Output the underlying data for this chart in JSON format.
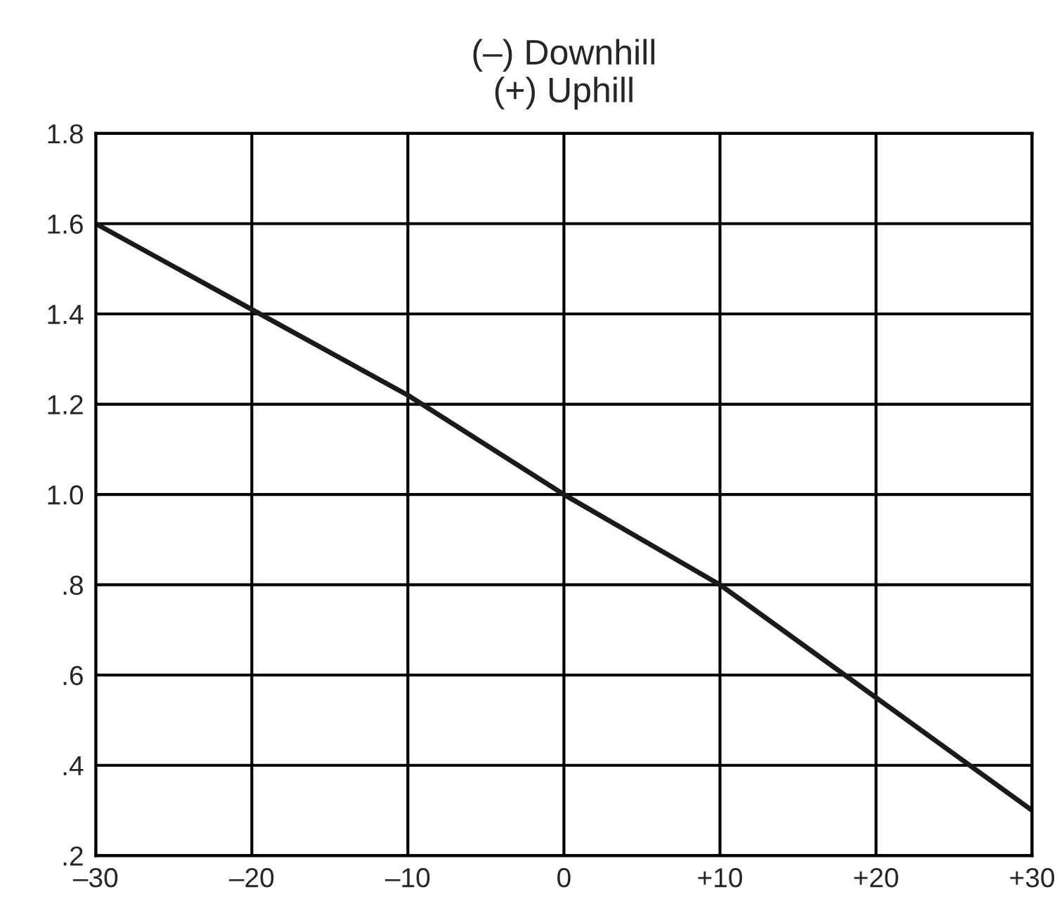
{
  "chart_data": {
    "type": "line",
    "title": "(–) Downhill\n(+) Uphill",
    "x": [
      -30,
      -20,
      -10,
      0,
      10,
      20,
      30
    ],
    "series": [
      {
        "color": "#1a1a1a",
        "values": [
          1.6,
          1.41,
          1.22,
          1.0,
          0.8,
          0.55,
          0.3
        ]
      }
    ],
    "xlim": [
      -30,
      30
    ],
    "xticks": [
      {
        "value": -30,
        "label": "–30"
      },
      {
        "value": -20,
        "label": "–20"
      },
      {
        "value": -10,
        "label": "–10"
      },
      0,
      {
        "value": 10,
        "label": "+10"
      },
      {
        "value": 20,
        "label": "+20"
      },
      {
        "value": 30,
        "label": "+30"
      }
    ],
    "ylim": [
      0.2,
      1.8
    ],
    "yticks": [
      {
        "value": 0.2,
        "label": ".2"
      },
      {
        "value": 0.4,
        "label": ".4"
      },
      {
        "value": 0.6,
        "label": ".6"
      },
      {
        "value": 0.8,
        "label": ".8"
      },
      {
        "value": 1.0,
        "label": "1.0"
      },
      {
        "value": 1.2,
        "label": "1.2"
      },
      {
        "value": 1.4,
        "label": "1.4"
      },
      {
        "value": 1.6,
        "label": "1.6"
      },
      {
        "value": 1.8,
        "label": "1.8"
      }
    ],
    "grid": true,
    "line_style": "solid"
  }
}
